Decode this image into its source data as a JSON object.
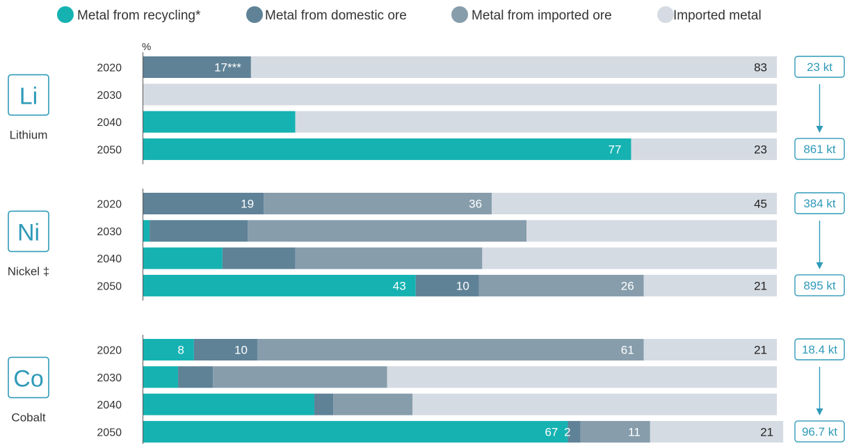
{
  "legend": [
    {
      "key": "recycling",
      "label": "Metal from recycling*",
      "color": "#16b2b2"
    },
    {
      "key": "domestic",
      "label": "Metal from domestic ore",
      "color": "#5f8297"
    },
    {
      "key": "imported_ore",
      "label": "Metal from imported ore",
      "color": "#879dac"
    },
    {
      "key": "imported_metal",
      "label": "Imported metal",
      "color": "#d5dbe2"
    }
  ],
  "colors": {
    "accent": "#2f9ab8",
    "axis": "#555555",
    "text": "#333333"
  },
  "chart_data": {
    "type": "bar",
    "orientation": "horizontal",
    "stacked": true,
    "unit_label": "%",
    "xlim": [
      0,
      100
    ],
    "groups": [
      {
        "symbol": "Li",
        "name": "Lithium",
        "kt_start": "23 kt",
        "kt_end": "861 kt",
        "rows": [
          {
            "year": "2020",
            "values": {
              "recycling": 0,
              "domestic": 17,
              "imported_ore": 0,
              "imported_metal": 83
            },
            "labels": {
              "domestic": "17***",
              "imported_metal": "83"
            }
          },
          {
            "year": "2030",
            "values": {
              "recycling": 0,
              "domestic": 0,
              "imported_ore": 0,
              "imported_metal": 100
            },
            "labels": {}
          },
          {
            "year": "2040",
            "values": {
              "recycling": 24,
              "domestic": 0,
              "imported_ore": 0,
              "imported_metal": 76
            },
            "labels": {}
          },
          {
            "year": "2050",
            "values": {
              "recycling": 77,
              "domestic": 0,
              "imported_ore": 0,
              "imported_metal": 23
            },
            "labels": {
              "recycling": "77",
              "imported_metal": "23"
            }
          }
        ]
      },
      {
        "symbol": "Ni",
        "name": "Nickel ‡",
        "kt_start": "384 kt",
        "kt_end": "895 kt",
        "rows": [
          {
            "year": "2020",
            "values": {
              "recycling": 0,
              "domestic": 19,
              "imported_ore": 36,
              "imported_metal": 45
            },
            "labels": {
              "domestic": "19",
              "imported_ore": "36",
              "imported_metal": "45"
            }
          },
          {
            "year": "2030",
            "values": {
              "recycling": 1,
              "domestic": 15.5,
              "imported_ore": 44,
              "imported_metal": 39.5
            },
            "labels": {}
          },
          {
            "year": "2040",
            "values": {
              "recycling": 12.5,
              "domestic": 11.5,
              "imported_ore": 29.5,
              "imported_metal": 46.5
            },
            "labels": {}
          },
          {
            "year": "2050",
            "values": {
              "recycling": 43,
              "domestic": 10,
              "imported_ore": 26,
              "imported_metal": 21
            },
            "labels": {
              "recycling": "43",
              "domestic": "10",
              "imported_ore": "26",
              "imported_metal": "21"
            }
          }
        ]
      },
      {
        "symbol": "Co",
        "name": "Cobalt",
        "kt_start": "18.4 kt",
        "kt_end": "96.7 kt",
        "rows": [
          {
            "year": "2020",
            "values": {
              "recycling": 8,
              "domestic": 10,
              "imported_ore": 61,
              "imported_metal": 21
            },
            "labels": {
              "recycling": "8",
              "domestic": "10",
              "imported_ore": "61",
              "imported_metal": "21"
            }
          },
          {
            "year": "2030",
            "values": {
              "recycling": 5.5,
              "domestic": 5.5,
              "imported_ore": 27.5,
              "imported_metal": 61.5
            },
            "labels": {}
          },
          {
            "year": "2040",
            "values": {
              "recycling": 27,
              "domestic": 3,
              "imported_ore": 12.5,
              "imported_metal": 57.5
            },
            "labels": {}
          },
          {
            "year": "2050",
            "values": {
              "recycling": 67,
              "domestic": 2,
              "imported_ore": 11,
              "imported_metal": 21
            },
            "labels": {
              "recycling": "67",
              "domestic": "2",
              "imported_ore": "11",
              "imported_metal": "21"
            }
          }
        ]
      }
    ]
  }
}
